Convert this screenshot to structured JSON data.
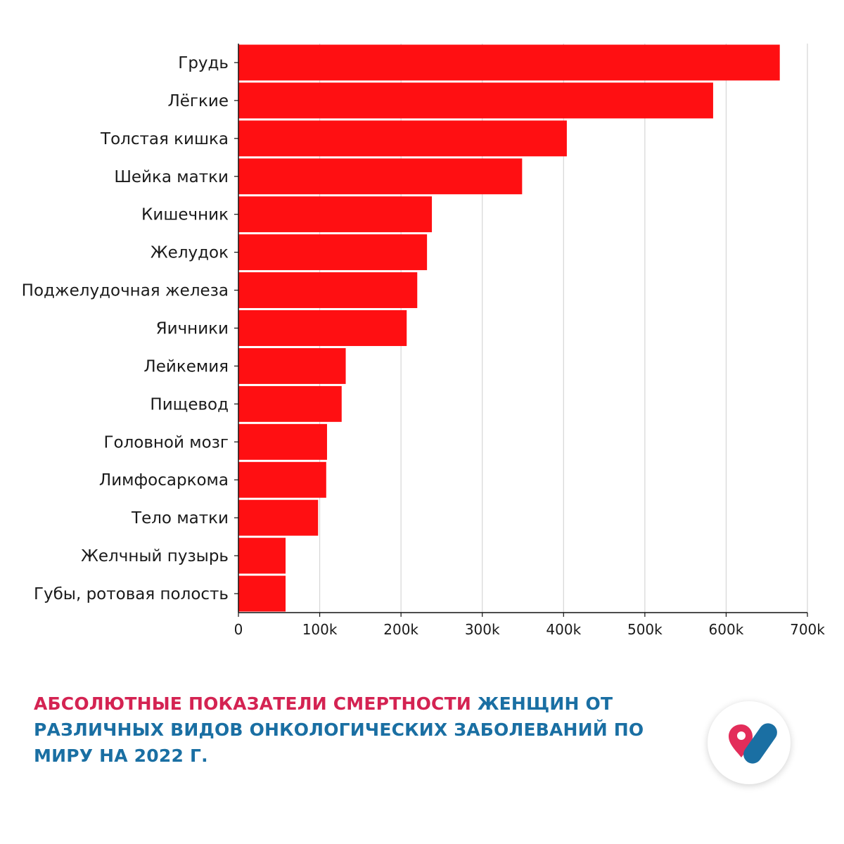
{
  "chart_data": {
    "type": "bar",
    "orientation": "horizontal",
    "categories": [
      "Грудь",
      "Лёгкие",
      "Толстая кишка",
      "Шейка матки",
      "Кишечник",
      "Желудок",
      "Поджелудочная железа",
      "Яичники",
      "Лейкемия",
      "Пищевод",
      "Головной мозг",
      "Лимфосаркома",
      "Тело матки",
      "Желчный пузырь",
      "Губы, ротовая полость"
    ],
    "values": [
      666000,
      584000,
      404000,
      349000,
      238000,
      232000,
      220000,
      207000,
      132000,
      127000,
      109000,
      108000,
      98000,
      58000,
      58000
    ],
    "xlim": [
      0,
      700000
    ],
    "xticks": [
      0,
      100000,
      200000,
      300000,
      400000,
      500000,
      600000,
      700000
    ],
    "xtick_labels": [
      "0",
      "100k",
      "200k",
      "300k",
      "400k",
      "500k",
      "600k",
      "700k"
    ],
    "bar_color": "#ff0f12",
    "grid": "vertical"
  },
  "caption": {
    "part_red": "АБСОЛЮТНЫЕ ПОКАЗАТЕЛИ СМЕРТНОСТИ",
    "part_blue": " ЖЕНЩИН ОТ РАЗЛИЧНЫХ ВИДОВ ОНКОЛОГИЧЕСКИХ ЗАБОЛЕВАНИЙ ПО МИРУ НА 2022 Г.",
    "red_color": "#d42352",
    "blue_color": "#1a6fa3"
  },
  "logo": {
    "icon": "pin-and-pill-logo-icon"
  }
}
